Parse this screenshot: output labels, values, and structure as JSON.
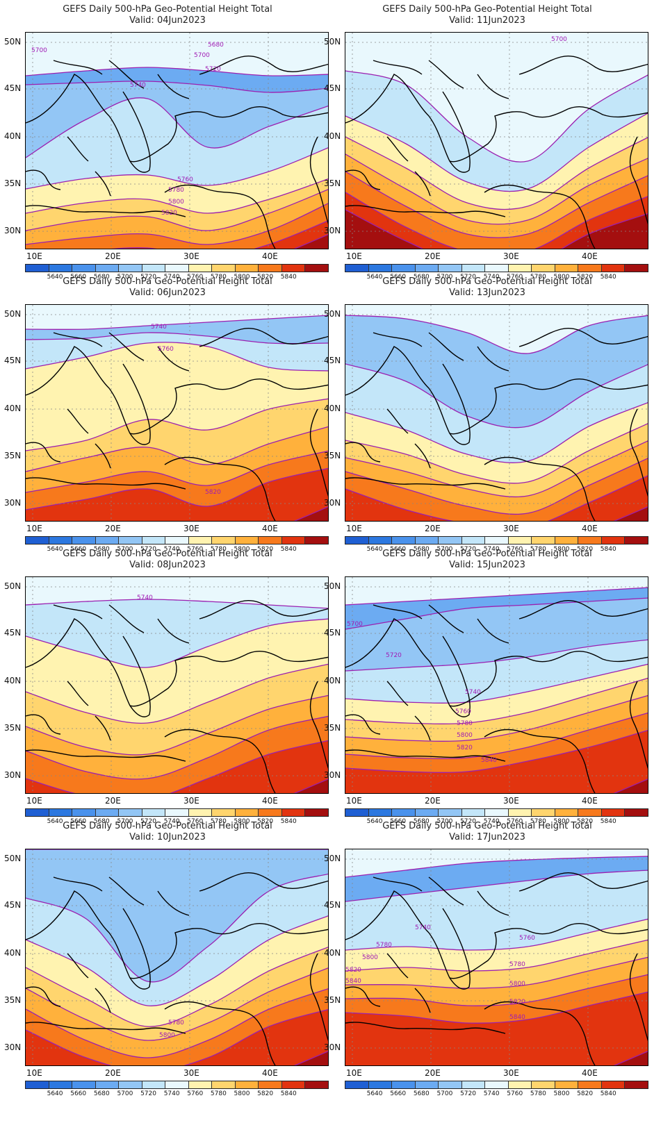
{
  "colorbar": {
    "colors": [
      "#1f5fd3",
      "#2c78e0",
      "#4a92ec",
      "#6cabf2",
      "#93c6f5",
      "#c3e6f9",
      "#e9f8fd",
      "#fff3b0",
      "#ffd56e",
      "#ffb13c",
      "#f7791c",
      "#e2340f",
      "#a40f0f"
    ],
    "labels": [
      "5640",
      "5660",
      "5680",
      "5700",
      "5720",
      "5740",
      "5760",
      "5780",
      "5800",
      "5820",
      "5840"
    ]
  },
  "lat_labels": [
    "50N",
    "45N",
    "40N",
    "35N",
    "30N"
  ],
  "lon_labels": [
    "10E",
    "20E",
    "30E",
    "40E"
  ],
  "panels": [
    {
      "title": "GEFS Daily 500-hPa Geo-Potential Height Total",
      "valid": "Valid: 04Jun2023",
      "bands": [
        {
          "c": "#6cabf2",
          "y": [
            62,
            55,
            50,
            55,
            62,
            60
          ]
        },
        {
          "c": "#93c6f5",
          "y": [
            75,
            72,
            70,
            76,
            86,
            80
          ]
        },
        {
          "c": "#c3e6f9",
          "y": [
            180,
            125,
            95,
            165,
            135,
            105
          ]
        },
        {
          "c": "#fff3b0",
          "y": [
            225,
            210,
            205,
            220,
            200,
            165
          ]
        },
        {
          "c": "#ffd56e",
          "y": [
            260,
            245,
            240,
            260,
            240,
            210
          ]
        },
        {
          "c": "#ffb13c",
          "y": [
            285,
            270,
            265,
            285,
            260,
            225
          ]
        },
        {
          "c": "#f7791c",
          "y": [
            305,
            295,
            290,
            305,
            285,
            245
          ]
        },
        {
          "c": "#e2340f",
          "y": [
            325,
            315,
            310,
            325,
            305,
            270
          ]
        },
        {
          "c": "#a40f0f",
          "y": [
            345,
            340,
            335,
            345,
            325,
            290
          ]
        }
      ],
      "contour_labels": [
        {
          "t": "5680",
          "x": 262,
          "y": 20
        },
        {
          "t": "5700",
          "x": 8,
          "y": 28
        },
        {
          "t": "5700",
          "x": 242,
          "y": 35
        },
        {
          "t": "5720",
          "x": 258,
          "y": 55
        },
        {
          "t": "5740",
          "x": 150,
          "y": 78
        },
        {
          "t": "5760",
          "x": 218,
          "y": 214
        },
        {
          "t": "5780",
          "x": 205,
          "y": 229
        },
        {
          "t": "5800",
          "x": 205,
          "y": 246
        },
        {
          "t": "5820",
          "x": 195,
          "y": 262
        }
      ]
    },
    {
      "title": "GEFS Daily 500-hPa Geo-Potential Height Total",
      "valid": "Valid: 11Jun2023",
      "bands": [
        {
          "c": "#c3e6f9",
          "y": [
            55,
            75,
            150,
            185,
            110,
            60
          ]
        },
        {
          "c": "#fff3b0",
          "y": [
            120,
            160,
            215,
            225,
            165,
            115
          ]
        },
        {
          "c": "#ffd56e",
          "y": [
            150,
            195,
            245,
            250,
            195,
            150
          ]
        },
        {
          "c": "#ffb13c",
          "y": [
            175,
            225,
            270,
            270,
            220,
            180
          ]
        },
        {
          "c": "#f7791c",
          "y": [
            200,
            250,
            290,
            290,
            245,
            205
          ]
        },
        {
          "c": "#e2340f",
          "y": [
            230,
            280,
            315,
            315,
            270,
            235
          ]
        },
        {
          "c": "#a40f0f",
          "y": [
            255,
            300,
            335,
            335,
            290,
            260
          ]
        }
      ],
      "contour_labels": [
        {
          "t": "5700",
          "x": 296,
          "y": 12
        }
      ]
    },
    {
      "title": "GEFS Daily 500-hPa Geo-Potential Height Total",
      "valid": "Valid: 06Jun2023",
      "bands": [
        {
          "c": "#93c6f5",
          "y": [
            35,
            35,
            30,
            25,
            20,
            15
          ]
        },
        {
          "c": "#c3e6f9",
          "y": [
            50,
            48,
            40,
            45,
            55,
            55
          ]
        },
        {
          "c": "#fff3b0",
          "y": [
            92,
            75,
            55,
            60,
            90,
            95
          ]
        },
        {
          "c": "#ffd56e",
          "y": [
            210,
            195,
            165,
            180,
            150,
            135
          ]
        },
        {
          "c": "#ffb13c",
          "y": [
            240,
            220,
            205,
            230,
            200,
            175
          ]
        },
        {
          "c": "#f7791c",
          "y": [
            270,
            255,
            240,
            260,
            230,
            210
          ]
        },
        {
          "c": "#e2340f",
          "y": [
            295,
            280,
            265,
            290,
            255,
            235
          ]
        },
        {
          "c": "#a40f0f",
          "y": [
            345,
            340,
            335,
            345,
            325,
            290
          ]
        }
      ],
      "contour_labels": [
        {
          "t": "5740",
          "x": 180,
          "y": 34
        },
        {
          "t": "5760",
          "x": 190,
          "y": 66
        },
        {
          "t": "5820",
          "x": 258,
          "y": 272
        }
      ]
    },
    {
      "title": "GEFS Daily 500-hPa Geo-Potential Height Total",
      "valid": "Valid: 13Jun2023",
      "bands": [
        {
          "c": "#93c6f5",
          "y": [
            15,
            20,
            40,
            70,
            30,
            15
          ]
        },
        {
          "c": "#c3e6f9",
          "y": [
            85,
            110,
            160,
            175,
            125,
            85
          ]
        },
        {
          "c": "#fff3b0",
          "y": [
            155,
            180,
            215,
            225,
            175,
            140
          ]
        },
        {
          "c": "#ffd56e",
          "y": [
            195,
            215,
            245,
            255,
            210,
            170
          ]
        },
        {
          "c": "#ffb13c",
          "y": [
            220,
            240,
            265,
            275,
            235,
            195
          ]
        },
        {
          "c": "#f7791c",
          "y": [
            240,
            265,
            290,
            300,
            260,
            220
          ]
        },
        {
          "c": "#e2340f",
          "y": [
            265,
            295,
            315,
            320,
            285,
            245
          ]
        },
        {
          "c": "#a40f0f",
          "y": [
            345,
            340,
            335,
            345,
            325,
            290
          ]
        }
      ],
      "contour_labels": []
    },
    {
      "title": "GEFS Daily 500-hPa Geo-Potential Height Total",
      "valid": "Valid: 08Jun2023",
      "bands": [
        {
          "c": "#c3e6f9",
          "y": [
            40,
            35,
            32,
            35,
            40,
            45
          ]
        },
        {
          "c": "#fff3b0",
          "y": [
            85,
            110,
            130,
            100,
            70,
            60
          ]
        },
        {
          "c": "#ffd56e",
          "y": [
            165,
            195,
            210,
            180,
            145,
            125
          ]
        },
        {
          "c": "#ffb13c",
          "y": [
            215,
            245,
            255,
            225,
            190,
            170
          ]
        },
        {
          "c": "#f7791c",
          "y": [
            250,
            280,
            290,
            260,
            220,
            200
          ]
        },
        {
          "c": "#e2340f",
          "y": [
            290,
            315,
            320,
            290,
            255,
            235
          ]
        },
        {
          "c": "#a40f0f",
          "y": [
            345,
            340,
            335,
            345,
            325,
            290
          ]
        }
      ],
      "contour_labels": [
        {
          "t": "5740",
          "x": 160,
          "y": 32
        }
      ]
    },
    {
      "title": "GEFS Daily 500-hPa Geo-Potential Height Total",
      "valid": "Valid: 15Jun2023",
      "bands": [
        {
          "c": "#6cabf2",
          "y": [
            40,
            35,
            30,
            25,
            20,
            15
          ]
        },
        {
          "c": "#93c6f5",
          "y": [
            75,
            60,
            45,
            40,
            35,
            30
          ]
        },
        {
          "c": "#c3e6f9",
          "y": [
            135,
            130,
            125,
            115,
            100,
            90
          ]
        },
        {
          "c": "#fff3b0",
          "y": [
            175,
            180,
            180,
            165,
            145,
            125
          ]
        },
        {
          "c": "#ffd56e",
          "y": [
            205,
            210,
            210,
            195,
            170,
            145
          ]
        },
        {
          "c": "#ffb13c",
          "y": [
            230,
            235,
            235,
            220,
            195,
            170
          ]
        },
        {
          "c": "#f7791c",
          "y": [
            255,
            260,
            260,
            245,
            220,
            195
          ]
        },
        {
          "c": "#e2340f",
          "y": [
            275,
            280,
            280,
            265,
            245,
            220
          ]
        },
        {
          "c": "#a40f0f",
          "y": [
            345,
            340,
            335,
            345,
            325,
            290
          ]
        }
      ],
      "contour_labels": [
        {
          "t": "5700",
          "x": 2,
          "y": 70
        },
        {
          "t": "5720",
          "x": 58,
          "y": 115
        },
        {
          "t": "5740",
          "x": 172,
          "y": 168
        },
        {
          "t": "5760",
          "x": 158,
          "y": 196
        },
        {
          "t": "5780",
          "x": 160,
          "y": 213
        },
        {
          "t": "5800",
          "x": 160,
          "y": 230
        },
        {
          "t": "5820",
          "x": 160,
          "y": 248
        },
        {
          "t": "5840",
          "x": 195,
          "y": 266
        }
      ]
    },
    {
      "title": "GEFS Daily 500-hPa Geo-Potential Height Total",
      "valid": "Valid: 10Jun2023",
      "bands": [
        {
          "c": "#93c6f5",
          "y": [
            0,
            0,
            0,
            0,
            0,
            0
          ]
        },
        {
          "c": "#c3e6f9",
          "y": [
            70,
            100,
            190,
            140,
            60,
            35
          ]
        },
        {
          "c": "#fff3b0",
          "y": [
            130,
            170,
            225,
            190,
            130,
            95
          ]
        },
        {
          "c": "#ffd56e",
          "y": [
            170,
            215,
            255,
            225,
            175,
            140
          ]
        },
        {
          "c": "#ffb13c",
          "y": [
            200,
            245,
            275,
            250,
            205,
            170
          ]
        },
        {
          "c": "#f7791c",
          "y": [
            230,
            275,
            300,
            275,
            230,
            200
          ]
        },
        {
          "c": "#e2340f",
          "y": [
            260,
            300,
            320,
            300,
            255,
            230
          ]
        },
        {
          "c": "#a40f0f",
          "y": [
            345,
            340,
            335,
            345,
            325,
            290
          ]
        }
      ],
      "contour_labels": [
        {
          "t": "5780",
          "x": 205,
          "y": 252
        },
        {
          "t": "5800",
          "x": 192,
          "y": 270
        }
      ]
    },
    {
      "title": "GEFS Daily 500-hPa Geo-Potential Height Total",
      "valid": "Valid: 17Jun2023",
      "bands": [
        {
          "c": "#6cabf2",
          "y": [
            40,
            30,
            20,
            15,
            12,
            10
          ]
        },
        {
          "c": "#c3e6f9",
          "y": [
            75,
            65,
            55,
            45,
            35,
            30
          ]
        },
        {
          "c": "#fff3b0",
          "y": [
            145,
            140,
            145,
            140,
            120,
            100
          ]
        },
        {
          "c": "#ffd56e",
          "y": [
            175,
            170,
            175,
            170,
            150,
            130
          ]
        },
        {
          "c": "#ffb13c",
          "y": [
            195,
            195,
            200,
            195,
            175,
            155
          ]
        },
        {
          "c": "#f7791c",
          "y": [
            215,
            215,
            225,
            220,
            200,
            180
          ]
        },
        {
          "c": "#e2340f",
          "y": [
            235,
            240,
            250,
            245,
            225,
            205
          ]
        },
        {
          "c": "#a40f0f",
          "y": [
            345,
            340,
            335,
            345,
            325,
            290
          ]
        }
      ],
      "contour_labels": [
        {
          "t": "5740",
          "x": 100,
          "y": 115
        },
        {
          "t": "5760",
          "x": 250,
          "y": 130
        },
        {
          "t": "5780",
          "x": 44,
          "y": 140
        },
        {
          "t": "5780",
          "x": 236,
          "y": 168
        },
        {
          "t": "5800",
          "x": 24,
          "y": 158
        },
        {
          "t": "5800",
          "x": 236,
          "y": 196
        },
        {
          "t": "5820",
          "x": 0,
          "y": 176
        },
        {
          "t": "5820",
          "x": 236,
          "y": 222
        },
        {
          "t": "5840",
          "x": 0,
          "y": 192
        },
        {
          "t": "5840",
          "x": 236,
          "y": 244
        }
      ]
    }
  ]
}
